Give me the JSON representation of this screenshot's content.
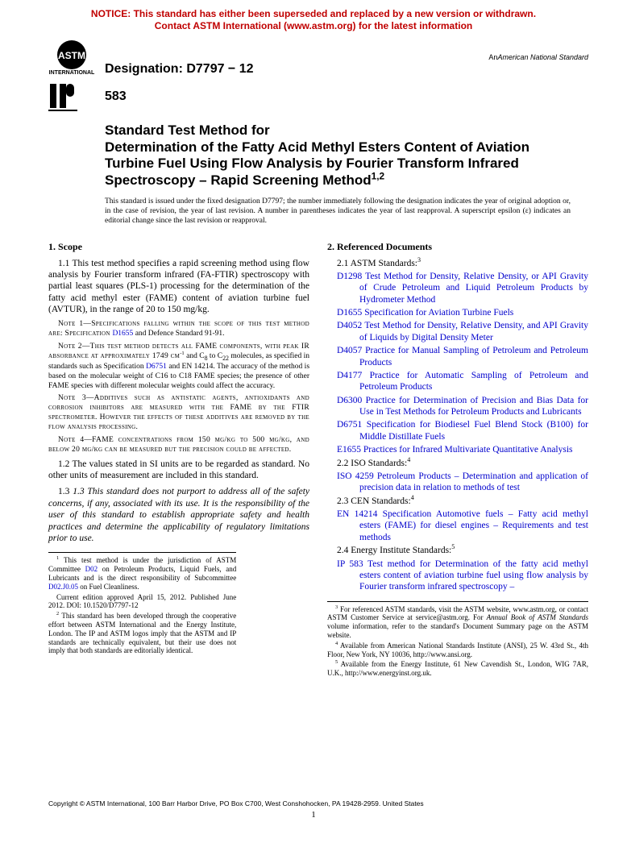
{
  "notice": {
    "line1": "NOTICE: This standard has either been superseded and replaced by a new version or withdrawn.",
    "line2": "Contact ASTM International (www.astm.org) for the latest information",
    "color": "#c00000"
  },
  "designation": {
    "label": "Designation: D7797 − 12"
  },
  "ans_label": {
    "prefix": "An",
    "text": "American National Standard"
  },
  "ip_number": "583",
  "title": {
    "line1": "Standard Test Method for",
    "line2": "Determination of the Fatty Acid Methyl Esters Content of Aviation Turbine Fuel Using Flow Analysis by Fourier Transform Infrared Spectroscopy – Rapid Screening Method",
    "super": "1,2"
  },
  "issue_note": "This standard is issued under the fixed designation D7797; the number immediately following the designation indicates the year of original adoption or, in the case of revision, the year of last revision. A number in parentheses indicates the year of last reapproval. A superscript epsilon (ε) indicates an editorial change since the last revision or reapproval.",
  "scope": {
    "heading": "1. Scope",
    "p1_1": "1.1 This test method specifies a rapid screening method using flow analysis by Fourier transform infrared (FA-FTIR) spectroscopy with partial least squares (PLS-1) processing for the determination of the fatty acid methyl ester (FAME) content of aviation turbine fuel (AVTUR), in the range of 20 to 150 mg/kg.",
    "note1_pre": "Note 1—Specifications falling within the scope of this test method are: Specification ",
    "note1_link": "D1655",
    "note1_post": " and Defence Standard 91-91.",
    "note2_a": "Note 2—This test method detects all FAME components, with peak IR absorbance at approximately 1749 cm",
    "note2_b": " and C",
    "note2_c": " to C",
    "note2_d": " molecules, as specified in standards such as Specification ",
    "note2_link": "D6751",
    "note2_e": " and EN 14214. The accuracy of the method is based on the molecular weight of C16 to C18 FAME species; the presence of other FAME species with different molecular weights could affect the accuracy.",
    "note3": "Note 3—Additives such as antistatic agents, antioxidants and corrosion inhibitors are measured with the FAME by the FTIR spectrometer. However the effects of these additives are removed by the flow analysis processing.",
    "note4": "Note 4—FAME concentrations from 150 mg/kg to 500 mg/kg, and below 20 mg/kg can be measured but the precision could be affected.",
    "p1_2": "1.2 The values stated in SI units are to be regarded as standard. No other units of measurement are included in this standard.",
    "p1_3": "1.3 This standard does not purport to address all of the safety concerns, if any, associated with its use. It is the responsibility of the user of this standard to establish appropriate safety and health practices and determine the applicability of regulatory limitations prior to use."
  },
  "refs": {
    "heading": "2. Referenced Documents",
    "astm_head": "2.1 ASTM Standards:",
    "astm_sup": "3",
    "astm": [
      {
        "code": "D1298",
        "text": "Test Method for Density, Relative Density, or API Gravity of Crude Petroleum and Liquid Petroleum Products by Hydrometer Method"
      },
      {
        "code": "D1655",
        "text": "Specification for Aviation Turbine Fuels"
      },
      {
        "code": "D4052",
        "text": "Test Method for Density, Relative Density, and API Gravity of Liquids by Digital Density Meter"
      },
      {
        "code": "D4057",
        "text": "Practice for Manual Sampling of Petroleum and Petroleum Products"
      },
      {
        "code": "D4177",
        "text": "Practice for Automatic Sampling of Petroleum and Petroleum Products"
      },
      {
        "code": "D6300",
        "text": "Practice for Determination of Precision and Bias Data for Use in Test Methods for Petroleum Products and Lubricants"
      },
      {
        "code": "D6751",
        "text": "Specification for Biodiesel Fuel Blend Stock (B100) for Middle Distillate Fuels"
      },
      {
        "code": "E1655",
        "text": "Practices for Infrared Multivariate Quantitative Analysis"
      }
    ],
    "iso_head": "2.2 ISO Standards:",
    "iso_sup": "4",
    "iso": [
      {
        "code": "ISO 4259",
        "text": "Petroleum Products – Determination and application of precision data in relation to methods of test"
      }
    ],
    "cen_head": "2.3 CEN Standards:",
    "cen_sup": "4",
    "cen": [
      {
        "code": "EN 14214",
        "text": "Specification Automotive fuels – Fatty acid methyl esters (FAME) for diesel engines – Requirements and test methods"
      }
    ],
    "ei_head": "2.4 Energy Institute Standards:",
    "ei_sup": "5",
    "ei": [
      {
        "code": "IP 583",
        "text": "Test method for Determination of the fatty acid methyl esters content of aviation turbine fuel using flow analysis by Fourier transform infrared spectroscopy –"
      }
    ]
  },
  "footnotes_left": {
    "f1_a": " This test method is under the jurisdiction of ASTM Committee ",
    "f1_link1": "D02",
    "f1_b": " on Petroleum Products, Liquid Fuels, and Lubricants and is the direct responsibility of Subcommittee ",
    "f1_link2": "D02.J0.05",
    "f1_c": " on Fuel Cleanliness.",
    "f1_d": "Current edition approved April 15, 2012. Published June 2012. DOI: 10.1520/D7797-12",
    "f2": " This standard has been developed through the cooperative effort between ASTM International and the Energy Institute, London. The IP and ASTM logos imply that the ASTM and IP standards are technically equivalent, but their use does not imply that both standards are editorially identical."
  },
  "footnotes_right": {
    "f3_a": " For referenced ASTM standards, visit the ASTM website, www.astm.org, or contact ASTM Customer Service at service@astm.org. For ",
    "f3_ital": "Annual Book of ASTM Standards",
    "f3_b": " volume information, refer to the standard's Document Summary page on the ASTM website.",
    "f4": " Available from American National Standards Institute (ANSI), 25 W. 43rd St., 4th Floor, New York, NY 10036, http://www.ansi.org.",
    "f5": " Available from the Energy Institute, 61 New Cavendish St., London, WIG 7AR, U.K., http://www.energyinst.org.uk."
  },
  "copyright": "Copyright © ASTM International, 100 Barr Harbor Drive, PO Box C700, West Conshohocken, PA 19428-2959. United States",
  "pagenum": "1",
  "colors": {
    "link": "#0000cc",
    "notice": "#c00000"
  }
}
